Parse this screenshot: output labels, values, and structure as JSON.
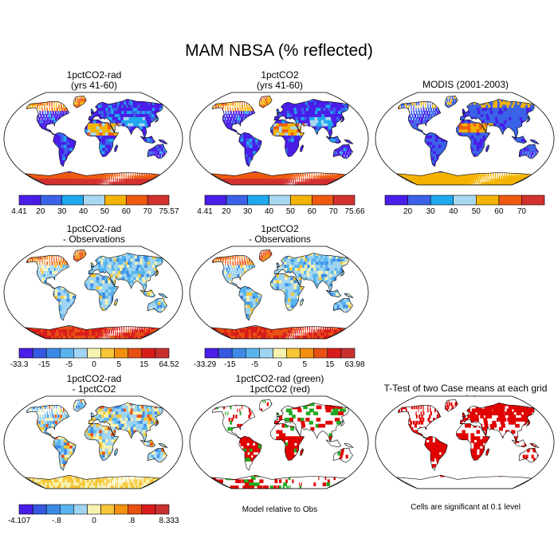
{
  "title": "MAM NBSA (% reflected)",
  "palettes": {
    "absolute": [
      "#4a1de8",
      "#3a63e8",
      "#1ea8ee",
      "#a8d8f0",
      "#f4b300",
      "#ef5a10",
      "#d43030"
    ],
    "difference": [
      "#4a1de8",
      "#3558e0",
      "#3c8ae6",
      "#58b4ee",
      "#9fd4f2",
      "#f7f2b0",
      "#f6c636",
      "#f39010",
      "#e85014",
      "#d81c1c",
      "#c83030"
    ],
    "significance": {
      "model": "#e00000",
      "obs": "#22aa22",
      "land_outline": "#000000"
    }
  },
  "panels": [
    {
      "id": "p1",
      "title_lines": [
        "1pctCO2-rad",
        "(yrs 41-60)"
      ],
      "scheme": "absolute",
      "colorbar": {
        "labels": [
          "4.41",
          "20",
          "30",
          "40",
          "50",
          "60",
          "70",
          "75.57"
        ]
      }
    },
    {
      "id": "p2",
      "title_lines": [
        "1pctCO2",
        "(yrs 41-60)"
      ],
      "scheme": "absolute",
      "colorbar": {
        "labels": [
          "4.41",
          "20",
          "30",
          "40",
          "50",
          "60",
          "70",
          "75.66"
        ]
      }
    },
    {
      "id": "p3",
      "title_lines": [
        "MODIS (2001-2003)"
      ],
      "scheme": "absolute",
      "colorbar": {
        "labels": [
          "",
          "20",
          "30",
          "40",
          "50",
          "60",
          "70",
          ""
        ]
      }
    },
    {
      "id": "p4",
      "title_lines": [
        "1pctCO2-rad",
        "- Observations"
      ],
      "scheme": "difference",
      "colorbar": {
        "labels": [
          "-33.3",
          "",
          "-15",
          "",
          "-5",
          "",
          "0",
          "",
          "5",
          "",
          "15",
          "",
          "64.52"
        ]
      }
    },
    {
      "id": "p5",
      "title_lines": [
        "1pctCO2",
        "- Observations"
      ],
      "scheme": "difference",
      "colorbar": {
        "labels": [
          "-33.29",
          "",
          "-15",
          "",
          "-5",
          "",
          "0",
          "",
          "5",
          "",
          "15",
          "",
          "63.98"
        ]
      }
    },
    {
      "id": "p7",
      "title_lines": [
        "1pctCO2-rad",
        "- 1pctCO2"
      ],
      "scheme": "difference",
      "colorbar": {
        "labels": [
          "-4.107",
          "",
          "",
          "-.8",
          "",
          "",
          "0",
          "",
          "",
          ".8",
          "",
          "",
          "8.333"
        ]
      }
    },
    {
      "id": "p8",
      "title_lines": [
        "1pctCO2-rad (green)",
        "1pctCO2 (red)"
      ],
      "scheme": "significance",
      "note": "Model relative to Obs"
    },
    {
      "id": "p9",
      "title_lines": [
        "T-Test of two Case means at each grid point"
      ],
      "scheme": "ttest",
      "note": "Cells are significant at 0.1 level"
    }
  ]
}
